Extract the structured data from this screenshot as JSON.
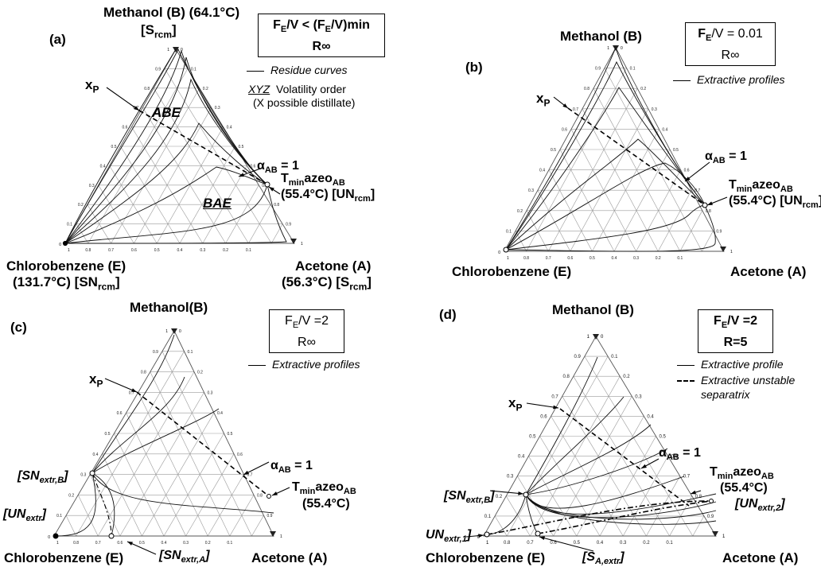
{
  "panel_a": {
    "tag": "(a)",
    "top_vertex_label": "Methanol (B) (64.1°C)",
    "top_vertex_class": "[S",
    "top_vertex_class_sub": "rcm",
    "top_vertex_class_end": "]",
    "left_vertex_label": "Chlorobenzene (E)",
    "left_vertex_temp": "(131.7°C) [SN",
    "left_vertex_temp_sub": "rcm",
    "left_vertex_temp_end": "]",
    "right_vertex_label": "Acetone (A)",
    "right_vertex_temp": "(56.3°C) [S",
    "right_vertex_temp_sub": "rcm",
    "right_vertex_temp_end": "]",
    "box_line1": "F",
    "box_line1_sub1": "E",
    "box_line1_mid": "/V < (F",
    "box_line1_sub2": "E",
    "box_line1_end": "/V)min",
    "box_line2": "R∞",
    "legend_curve": "Residue curves",
    "legend_order_prefix": "XYZ",
    "legend_order_text": "Volatility order",
    "legend_order_note": "(X possible distillate)",
    "region_1": "ABE",
    "region_2": "BAE",
    "xp": "x",
    "xp_sub": "P",
    "alpha": "α",
    "alpha_sub": "AB",
    "alpha_end": " = 1",
    "azeo": "T",
    "azeo_sub1": "min",
    "azeo_mid": "azeo",
    "azeo_sub2": "AB",
    "azeo_line2": "(55.4°C) [UN",
    "azeo_line2_sub": "rcm",
    "azeo_line2_end": "]"
  },
  "panel_b": {
    "tag": "(b)",
    "top_vertex_label": "Methanol (B)",
    "left_vertex_label": "Chlorobenzene (E)",
    "right_vertex_label": "Acetone (A)",
    "box_line1": "F",
    "box_line1_sub": "E",
    "box_line1_end": "/V = 0.01",
    "box_line2": "R∞",
    "legend_curve": "Extractive profiles",
    "xp": "x",
    "xp_sub": "P",
    "alpha": "α",
    "alpha_sub": "AB",
    "alpha_end": " = 1",
    "azeo": "T",
    "azeo_sub1": "min",
    "azeo_mid": "azeo",
    "azeo_sub2": "AB",
    "azeo_line2": "(55.4°C) [UN",
    "azeo_line2_sub": "rcm",
    "azeo_line2_end": "]"
  },
  "panel_c": {
    "tag": "(c)",
    "top_vertex_label": "Methanol(B)",
    "left_vertex_label": "Chlorobenzene (E)",
    "right_vertex_label": "Acetone (A)",
    "box_line1": "F",
    "box_line1_sub": "E",
    "box_line1_end": "/V =2",
    "box_line2": "R∞",
    "legend_curve": "Extractive profiles",
    "xp": "x",
    "xp_sub": "P",
    "alpha": "α",
    "alpha_sub": "AB",
    "alpha_end": " = 1",
    "azeo": "T",
    "azeo_sub1": "min",
    "azeo_mid": "azeo",
    "azeo_sub2": "AB",
    "azeo_line2": "(55.4°C)",
    "sn_extr_b": "[SN",
    "sn_extr_b_sub": "extr,B",
    "sn_extr_b_end": "]",
    "un_extr": "[UN",
    "un_extr_sub": "extr",
    "un_extr_end": "]",
    "sn_extr_a": "[SN",
    "sn_extr_a_sub": "extr,A",
    "sn_extr_a_end": "]"
  },
  "panel_d": {
    "tag": "(d)",
    "top_vertex_label": "Methanol (B)",
    "left_vertex_label": "Chlorobenzene (E)",
    "right_vertex_label": "Acetone (A)",
    "box_line1": "F",
    "box_line1_sub": "E",
    "box_line1_end": "/V =2",
    "box_line2": "R=5",
    "legend_curve": "Extractive profile",
    "legend_separatrix_1": "Extractive unstable",
    "legend_separatrix_2": "separatrix",
    "xp": "x",
    "xp_sub": "P",
    "alpha": "α",
    "alpha_sub": "AB",
    "alpha_end": " = 1",
    "azeo": "T",
    "azeo_sub1": "min",
    "azeo_mid": "azeo",
    "azeo_sub2": "AB",
    "azeo_line2": "(55.4°C)",
    "sn_extr_b": "[SN",
    "sn_extr_b_sub": "extr,B",
    "sn_extr_b_end": "]",
    "un_extr_1": "UN",
    "un_extr_1_sub": "extr,1",
    "un_extr_1_end": "]",
    "un_extr_2": "[UN",
    "un_extr_2_sub": "extr,2",
    "un_extr_2_end": "]",
    "s_a_extr": "[S",
    "s_a_extr_sub": "A,extr",
    "s_a_extr_end": "]"
  },
  "axis_ticks": [
    "0.1",
    "0.2",
    "0.3",
    "0.4",
    "0.5",
    "0.6",
    "0.7",
    "0.8",
    "0.9",
    "1"
  ],
  "axis_zero": "0"
}
